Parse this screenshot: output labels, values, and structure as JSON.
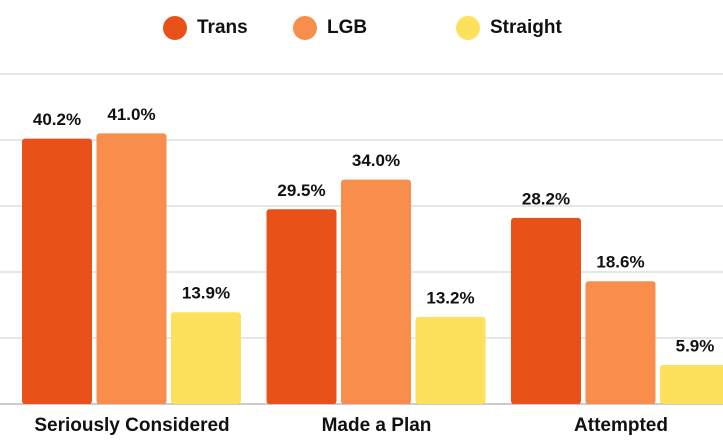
{
  "chart_data": {
    "type": "bar",
    "categories": [
      "Seriously Considered",
      "Made a Plan",
      "Attempted"
    ],
    "series": [
      {
        "name": "Trans",
        "color": "#e85119",
        "values": [
          40.2,
          29.5,
          28.2
        ],
        "value_labels": [
          "40.2%",
          "29.5%",
          "28.2%"
        ]
      },
      {
        "name": "LGB",
        "color": "#f98e4c",
        "values": [
          41.0,
          34.0,
          18.6
        ],
        "value_labels": [
          "41.0%",
          "34.0%",
          "18.6%"
        ]
      },
      {
        "name": "Straight",
        "color": "#fde05c",
        "values": [
          13.9,
          13.2,
          5.9
        ],
        "value_labels": [
          "13.9%",
          "13.2%",
          "5.9%"
        ]
      }
    ],
    "ylim": [
      0,
      50
    ],
    "yticks": [
      0,
      10,
      20,
      30,
      40,
      50
    ],
    "grid": true
  }
}
